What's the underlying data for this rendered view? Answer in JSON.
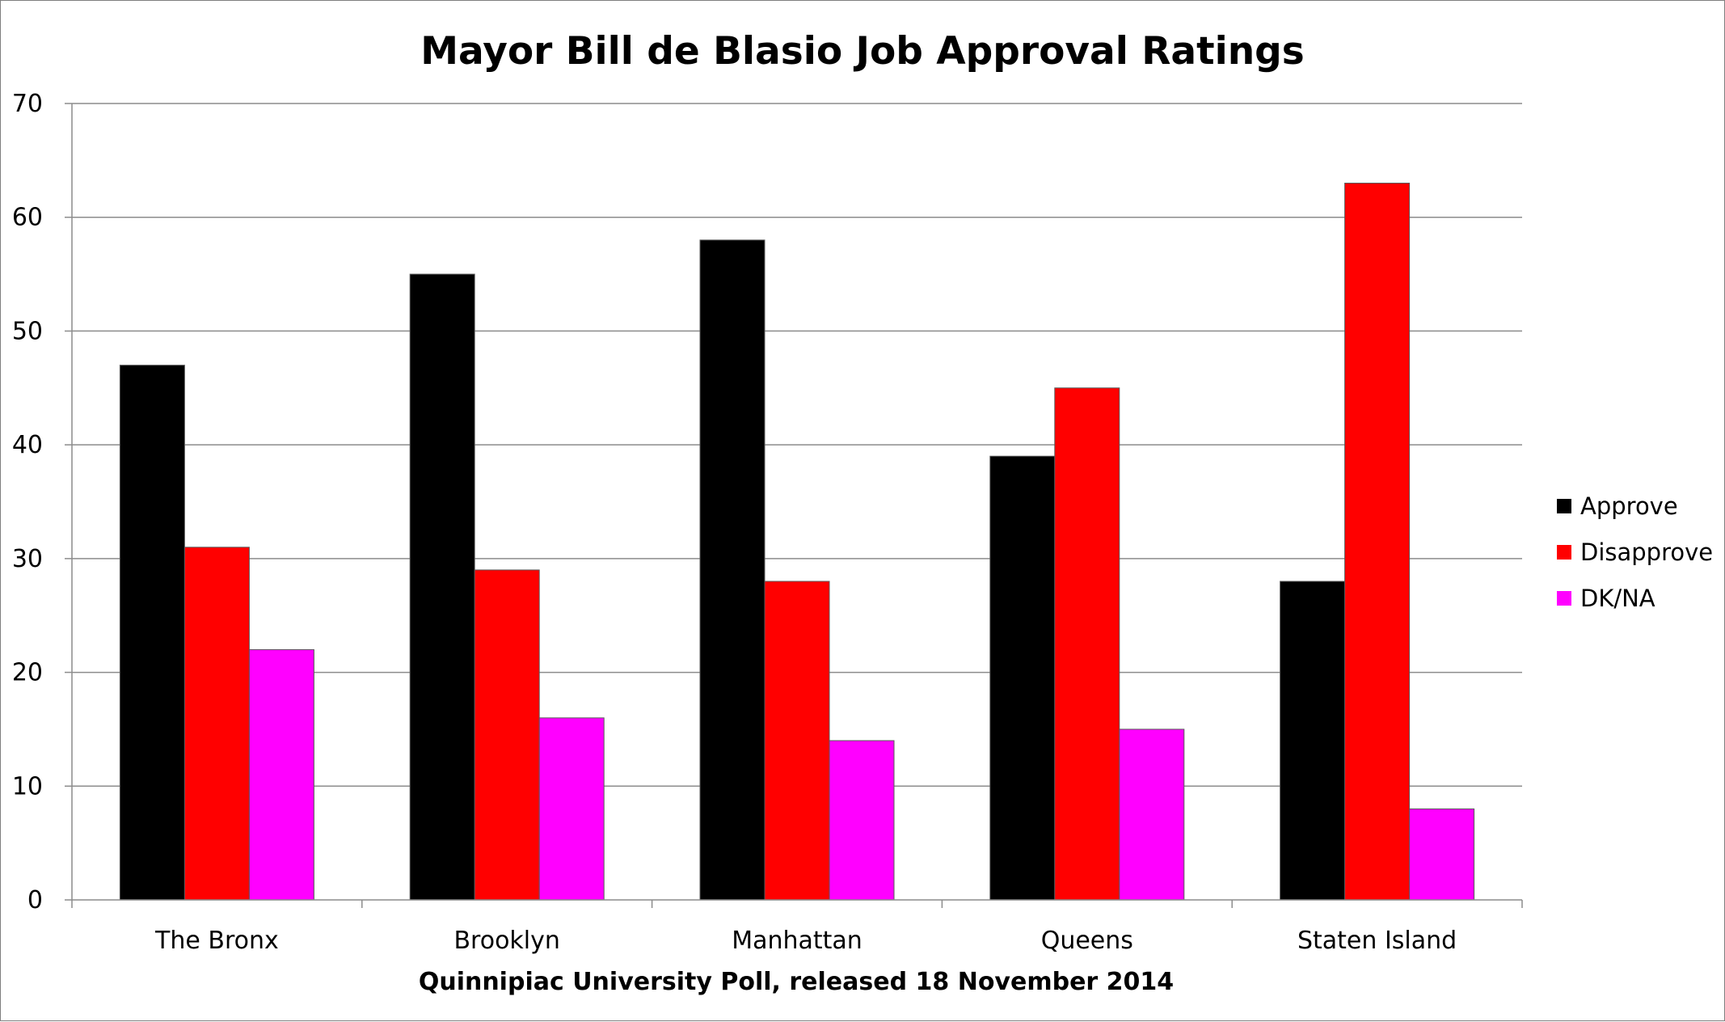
{
  "chart_data": {
    "type": "bar",
    "title": "Mayor Bill de Blasio Job Approval Ratings",
    "xlabel": "Quinnipiac University Poll, released 18 November 2014",
    "ylabel": "",
    "ylim": [
      0,
      70
    ],
    "yticks": [
      "0",
      "10",
      "20",
      "30",
      "40",
      "50",
      "60",
      "70"
    ],
    "grid": true,
    "legend_position": "right",
    "categories": [
      "The Bronx",
      "Brooklyn",
      "Manhattan",
      "Queens",
      "Staten Island"
    ],
    "series": [
      {
        "name": "Approve",
        "color": "#000000",
        "values": [
          47,
          55,
          58,
          39,
          28
        ]
      },
      {
        "name": "Disapprove",
        "color": "#ff0000",
        "values": [
          31,
          29,
          28,
          45,
          63
        ]
      },
      {
        "name": "DK/NA",
        "color": "#ff00ff",
        "values": [
          22,
          16,
          14,
          15,
          8
        ]
      }
    ]
  }
}
